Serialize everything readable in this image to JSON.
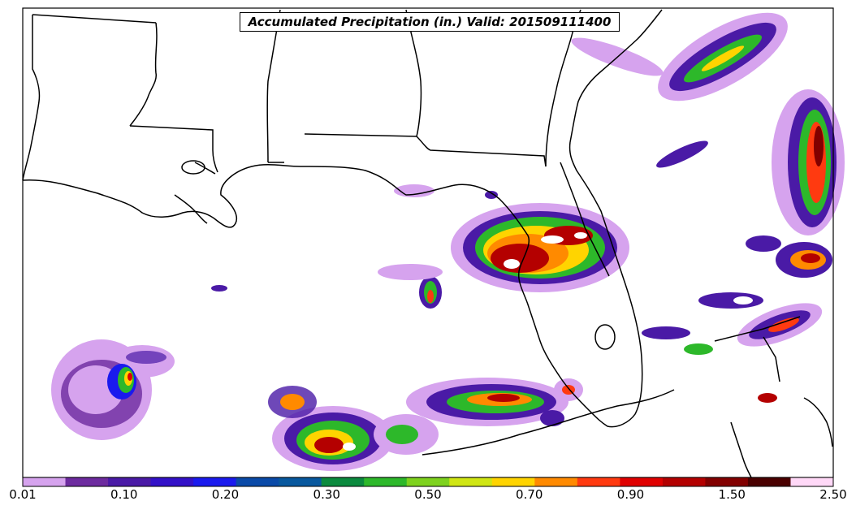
{
  "title": "Accumulated Precipitation (in.) Valid: 201509111400",
  "colorbar": {
    "colors": [
      "#d6a3ee",
      "#6d2b9f",
      "#4a1aa6",
      "#3311c8",
      "#1a1aee",
      "#0a4aa8",
      "#08589e",
      "#0b8a3e",
      "#2db82a",
      "#7ed21e",
      "#d0e614",
      "#ffd400",
      "#ff8a00",
      "#ff3a10",
      "#e00000",
      "#b40000",
      "#820000",
      "#4a0000",
      "#ffd8f7"
    ],
    "tick_labels": [
      "0.01",
      "0.10",
      "0.20",
      "0.30",
      "0.50",
      "0.70",
      "0.90",
      "1.50",
      "2.50"
    ]
  }
}
